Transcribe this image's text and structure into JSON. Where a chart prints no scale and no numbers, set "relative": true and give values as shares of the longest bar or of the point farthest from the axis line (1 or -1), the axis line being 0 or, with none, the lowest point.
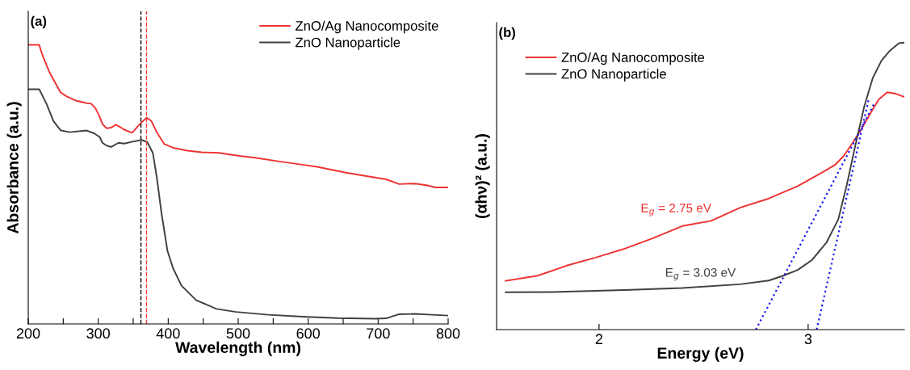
{
  "chart_data": [
    {
      "type": "line",
      "title": "(a)",
      "xlabel": "Wavelength (nm)",
      "ylabel": "Absorbance (a.u.)",
      "relative": true,
      "xlim": [
        200,
        800
      ],
      "xticks": [
        200,
        {
          "value": 250,
          "label": null
        },
        300,
        {
          "value": 350,
          "label": null
        },
        400,
        {
          "value": 450,
          "label": null
        },
        500,
        {
          "value": 550,
          "label": null
        },
        600,
        {
          "value": 650,
          "label": null
        },
        700,
        {
          "value": 750,
          "label": null
        },
        800
      ],
      "legend": "top right",
      "grid": false,
      "ref_lines": [
        {
          "axis": "x",
          "value": 361,
          "color": "#000000",
          "line_style": "dashed"
        },
        {
          "axis": "x",
          "value": 369,
          "color": "#ff3333",
          "line_style": "dashed"
        }
      ],
      "series": [
        {
          "name": "ZnO/Ag Nanocomposite",
          "color": "#ee3333",
          "x": [
            200,
            215.6,
            220,
            230,
            246,
            255,
            267,
            283.5,
            290,
            296,
            302,
            306,
            312,
            318.5,
            325,
            331,
            337,
            348.5,
            357.6,
            369,
            376,
            384,
            394.6,
            407,
            427.6,
            448,
            473,
            502,
            522,
            559,
            596,
            612.8,
            654,
            687,
            711.5,
            730,
            752.7,
            769,
            781.5,
            800
          ],
          "values": [
            1.0,
            1.0,
            0.965,
            0.903,
            0.83,
            0.815,
            0.801,
            0.791,
            0.789,
            0.773,
            0.742,
            0.716,
            0.701,
            0.703,
            0.714,
            0.706,
            0.696,
            0.685,
            0.711,
            0.739,
            0.727,
            0.685,
            0.644,
            0.631,
            0.621,
            0.615,
            0.613,
            0.602,
            0.596,
            0.582,
            0.569,
            0.563,
            0.542,
            0.528,
            0.518,
            0.501,
            0.503,
            0.497,
            0.489,
            0.489
          ]
        },
        {
          "name": "ZnO Nanoparticle",
          "color": "#404040",
          "x": [
            200,
            215.6,
            226,
            236,
            246,
            259,
            283.5,
            294,
            302,
            306,
            312,
            318.5,
            329,
            337,
            349,
            361.7,
            370,
            378,
            384,
            390.5,
            399,
            407,
            419,
            440,
            469,
            497,
            543,
            592,
            641.6,
            695,
            711.5,
            730,
            752.7,
            777,
            800
          ],
          "values": [
            0.841,
            0.841,
            0.789,
            0.727,
            0.694,
            0.687,
            0.693,
            0.683,
            0.67,
            0.649,
            0.639,
            0.634,
            0.649,
            0.646,
            0.653,
            0.659,
            0.652,
            0.613,
            0.52,
            0.395,
            0.261,
            0.199,
            0.137,
            0.085,
            0.054,
            0.043,
            0.033,
            0.026,
            0.021,
            0.019,
            0.02,
            0.035,
            0.036,
            0.033,
            0.03
          ]
        }
      ]
    },
    {
      "type": "line",
      "title": "(b)",
      "xlabel": "Energy (eV)",
      "ylabel": "(αhν)² (a.u.)",
      "relative": true,
      "xlim": [
        1.51,
        3.46
      ],
      "xticks": [
        2,
        3
      ],
      "legend": "top left",
      "grid": false,
      "annotations": [
        "E$_{g}$ = 2.75 eV",
        "E$_{g}$ = 3.03 eV"
      ],
      "series": [
        {
          "name": "ZnO/Ag Nanocomposite",
          "color": "#ee3333",
          "x": [
            1.553,
            1.707,
            1.845,
            1.983,
            2.122,
            2.26,
            2.398,
            2.536,
            2.674,
            2.812,
            2.95,
            3.061,
            3.13,
            3.171,
            3.213,
            3.254,
            3.296,
            3.337,
            3.378,
            3.42,
            3.457
          ],
          "values": [
            0.17,
            0.188,
            0.223,
            0.251,
            0.282,
            0.319,
            0.361,
            0.379,
            0.425,
            0.457,
            0.5,
            0.545,
            0.575,
            0.606,
            0.651,
            0.698,
            0.752,
            0.802,
            0.827,
            0.822,
            0.812
          ]
        },
        {
          "name": "ZnO Nanoparticle",
          "color": "#404040",
          "x": [
            1.553,
            1.777,
            2.122,
            2.398,
            2.674,
            2.812,
            2.881,
            2.95,
            3.019,
            3.088,
            3.144,
            3.185,
            3.227,
            3.268,
            3.309,
            3.351,
            3.392,
            3.434,
            3.457
          ],
          "values": [
            0.13,
            0.131,
            0.138,
            0.145,
            0.158,
            0.171,
            0.188,
            0.208,
            0.243,
            0.304,
            0.384,
            0.505,
            0.646,
            0.777,
            0.877,
            0.938,
            0.973,
            0.998,
            1.0
          ]
        },
        {
          "type": "line",
          "color": "#1a1aee",
          "line_style": "dotted",
          "x": [
            2.75,
            3.319
          ],
          "values": [
            0,
            0.792
          ]
        },
        {
          "type": "line",
          "color": "#1a1aee",
          "line_style": "dotted",
          "x": [
            3.041,
            3.291
          ],
          "values": [
            0,
            0.807
          ]
        }
      ]
    }
  ]
}
